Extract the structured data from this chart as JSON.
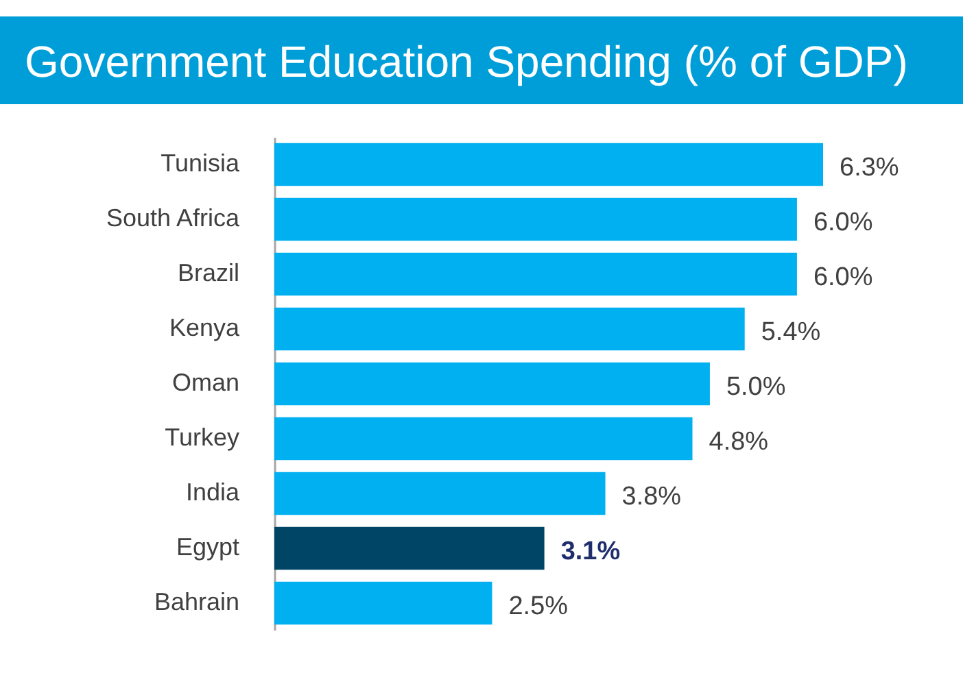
{
  "chart_data": {
    "type": "bar",
    "orientation": "horizontal",
    "title": "Government Education Spending (% of GDP)",
    "categories": [
      "Tunisia",
      "South Africa",
      "Brazil",
      "Kenya",
      "Oman",
      "Turkey",
      "India",
      "Egypt",
      "Bahrain"
    ],
    "values": [
      6.3,
      6.0,
      6.0,
      5.4,
      5.0,
      4.8,
      3.8,
      3.1,
      2.5
    ],
    "colors": [
      "#00b0f0",
      "#00b0f0",
      "#00b0f0",
      "#00b0f0",
      "#00b0f0",
      "#00b0f0",
      "#00b0f0",
      "#004565",
      "#00b0f0"
    ],
    "value_labels": [
      "6.3%",
      "6.0%",
      "6.0%",
      "5.4%",
      "5.0%",
      "4.8%",
      "3.8%",
      "3.1%",
      "2.5%"
    ]
  }
}
